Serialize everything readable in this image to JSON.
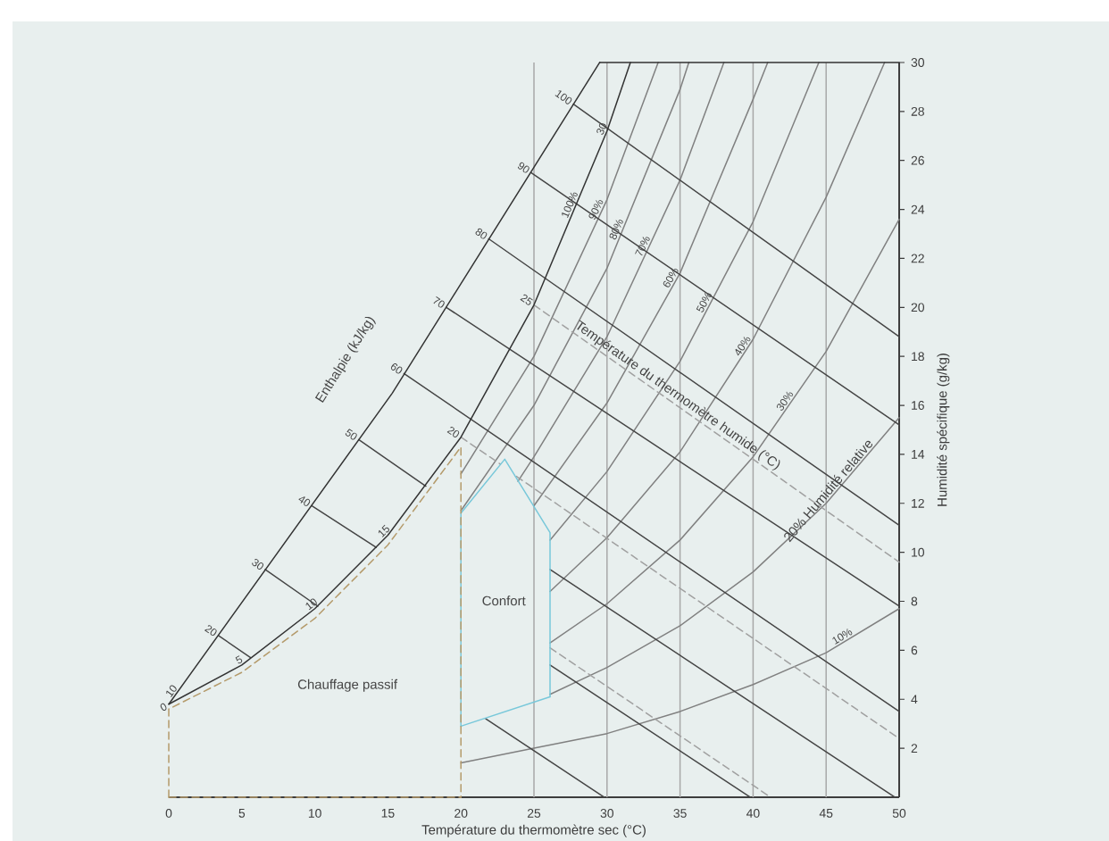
{
  "chart_data": {
    "type": "line",
    "xlabel": "Température du thermomètre sec (°C)",
    "ylabel": "Humidité spécifique (g/kg)",
    "xlim": [
      0,
      50
    ],
    "ylim": [
      0,
      30
    ],
    "xticks": [
      0,
      5,
      10,
      15,
      20,
      25,
      30,
      35,
      40,
      45,
      50
    ],
    "yticks": [
      2,
      4,
      6,
      8,
      10,
      12,
      14,
      16,
      18,
      20,
      22,
      24,
      26,
      28,
      30
    ],
    "ref_lines": [
      {
        "axis": "x",
        "value": 25,
        "color": "#a8a8a8"
      },
      {
        "axis": "x",
        "value": 30,
        "color": "#a8a8a8"
      },
      {
        "axis": "x",
        "value": 35,
        "color": "#a8a8a8"
      },
      {
        "axis": "x",
        "value": 40,
        "color": "#a8a8a8"
      },
      {
        "axis": "x",
        "value": 45,
        "color": "#a8a8a8"
      }
    ],
    "series": [
      {
        "x": [
          20,
          25,
          30,
          33.5
        ],
        "values": [
          13.2,
          18.0,
          24.4,
          30
        ],
        "color": "#808080"
      },
      {
        "x": [
          20,
          25,
          30,
          35,
          35.6
        ],
        "values": [
          11.7,
          16.0,
          21.6,
          28.9,
          30
        ],
        "color": "#808080"
      },
      {
        "x": [
          23.9,
          25,
          30,
          35,
          38
        ],
        "values": [
          12.9,
          13.9,
          18.8,
          25.2,
          30
        ],
        "color": "#808080"
      },
      {
        "x": [
          25,
          30,
          35,
          40,
          41
        ],
        "values": [
          11.9,
          16.1,
          21.4,
          28.5,
          30
        ],
        "color": "#808080"
      },
      {
        "x": [
          26.1,
          30,
          35,
          40,
          44.5
        ],
        "values": [
          10.5,
          13.3,
          17.8,
          23.5,
          30
        ],
        "color": "#808080"
      },
      {
        "x": [
          26.1,
          30,
          35,
          40,
          45,
          49
        ],
        "values": [
          8.4,
          10.6,
          14.1,
          18.7,
          24.5,
          30
        ],
        "color": "#808080"
      },
      {
        "x": [
          26.1,
          30,
          35,
          40,
          45,
          50
        ],
        "values": [
          6.3,
          7.9,
          10.5,
          13.9,
          18.2,
          23.6
        ],
        "color": "#808080"
      },
      {
        "x": [
          26.1,
          30,
          35,
          40,
          45,
          50
        ],
        "values": [
          4.2,
          5.3,
          7.0,
          9.2,
          12.0,
          15.5
        ],
        "color": "#808080"
      },
      {
        "x": [
          20,
          25,
          30,
          35,
          40,
          45,
          50
        ],
        "values": [
          1.4,
          2.0,
          2.6,
          3.5,
          4.6,
          5.9,
          7.7
        ],
        "color": "#808080"
      },
      {
        "x": [
          26.1,
          41.2
        ],
        "values": [
          6.1,
          0
        ],
        "color": "#a0a0a0",
        "line_style": "dashed"
      },
      {
        "x": [
          20,
          22.7
        ],
        "values": [
          14.7,
          13.6
        ],
        "color": "#a0a0a0",
        "line_style": "dashed"
      },
      {
        "x": [
          23.8,
          50
        ],
        "values": [
          13.1,
          2.4
        ],
        "color": "#a0a0a0",
        "line_style": "dashed"
      },
      {
        "x": [
          25,
          50
        ],
        "values": [
          20.1,
          9.6
        ],
        "color": "#a0a0a0",
        "line_style": "dashed"
      },
      {
        "x": [
          3.4,
          5.6
        ],
        "values": [
          6.6,
          5.7
        ],
        "color": "#454545"
      },
      {
        "x": [
          6.6,
          10.2
        ],
        "values": [
          9.3,
          7.8
        ],
        "color": "#454545"
      },
      {
        "x": [
          21.7,
          29.8
        ],
        "values": [
          3.2,
          0
        ],
        "color": "#454545"
      },
      {
        "x": [
          9.8,
          14.2
        ],
        "values": [
          11.9,
          10.2
        ],
        "color": "#454545"
      },
      {
        "x": [
          26.1,
          39.8
        ],
        "values": [
          5.4,
          0
        ],
        "color": "#454545"
      },
      {
        "x": [
          13.0,
          17.6
        ],
        "values": [
          14.6,
          12.7
        ],
        "color": "#454545"
      },
      {
        "x": [
          26.1,
          49.7
        ],
        "values": [
          9.3,
          0
        ],
        "color": "#454545"
      },
      {
        "x": [
          16.1,
          50
        ],
        "values": [
          17.3,
          3.5
        ],
        "color": "#454545"
      },
      {
        "x": [
          19.0,
          50
        ],
        "values": [
          20.0,
          7.8
        ],
        "color": "#454545"
      },
      {
        "x": [
          21.9,
          50
        ],
        "values": [
          22.8,
          11.1
        ],
        "color": "#454545"
      },
      {
        "x": [
          24.8,
          50
        ],
        "values": [
          25.5,
          15.2
        ],
        "color": "#454545"
      },
      {
        "x": [
          27.7,
          50
        ],
        "values": [
          28.3,
          18.8
        ],
        "color": "#454545"
      },
      {
        "x": [
          0,
          5,
          10,
          15,
          20,
          25,
          30,
          31.6
        ],
        "values": [
          3.8,
          5.4,
          7.7,
          10.7,
          14.7,
          20.1,
          27.2,
          30
        ],
        "color": "#333333"
      },
      {
        "name": "Enthalpie (kJ/kg)",
        "x": [
          0,
          15.3,
          29.5
        ],
        "values": [
          3.8,
          16.5,
          30
        ],
        "color": "#333333"
      },
      {
        "x": [
          29.5,
          50
        ],
        "values": [
          30,
          30
        ],
        "color": "#333333"
      },
      {
        "name": "Confort",
        "x": [
          20,
          20,
          23,
          26.1,
          26.1
        ],
        "values": [
          2.9,
          11.6,
          13.8,
          10.8,
          4.1
        ],
        "color": "#78c8da"
      },
      {
        "x": [
          20,
          26.1
        ],
        "values": [
          2.9,
          4.1
        ],
        "color": "#78c8da"
      },
      {
        "name": "Chauffage passif",
        "x": [
          0,
          0,
          5,
          10,
          15,
          20,
          20
        ],
        "values": [
          0,
          3.6,
          5.1,
          7.3,
          10.3,
          14.3,
          0
        ],
        "color": "#b49a6a",
        "line_style": "dashed"
      },
      {
        "x": [
          0,
          20
        ],
        "values": [
          0,
          0
        ],
        "color": "#b49a6a",
        "line_style": "dashed"
      }
    ],
    "annotations": [
      {
        "text": "10",
        "x": 0.5,
        "y": 4.2
      },
      {
        "text": "20",
        "x": 3.4,
        "y": 6.6
      },
      {
        "text": "30",
        "x": 6.6,
        "y": 9.3
      },
      {
        "text": "40",
        "x": 9.8,
        "y": 11.9
      },
      {
        "text": "50",
        "x": 13.0,
        "y": 14.6
      },
      {
        "text": "60",
        "x": 16.1,
        "y": 17.3
      },
      {
        "text": "70",
        "x": 19.0,
        "y": 20.0
      },
      {
        "text": "80",
        "x": 21.9,
        "y": 22.8
      },
      {
        "text": "90",
        "x": 24.8,
        "y": 25.5
      },
      {
        "text": "100",
        "x": 27.7,
        "y": 28.3
      },
      {
        "text": "0",
        "x": 0,
        "y": 3.8
      },
      {
        "text": "5",
        "x": 5,
        "y": 5.4
      },
      {
        "text": "10",
        "x": 10,
        "y": 7.7
      },
      {
        "text": "15",
        "x": 15,
        "y": 10.7
      },
      {
        "text": "20",
        "x": 20,
        "y": 14.7
      },
      {
        "text": "25",
        "x": 25,
        "y": 20.1
      },
      {
        "text": "30",
        "x": 30,
        "y": 27.2
      },
      {
        "text": "100%",
        "x": 27.8,
        "y": 24.1
      },
      {
        "text": "90%",
        "x": 29.6,
        "y": 23.9
      },
      {
        "text": "80%",
        "x": 31.0,
        "y": 23.1
      },
      {
        "text": "70%",
        "x": 32.8,
        "y": 22.4
      },
      {
        "text": "60%",
        "x": 34.7,
        "y": 21.1
      },
      {
        "text": "50%",
        "x": 37.0,
        "y": 20.1
      },
      {
        "text": "40%",
        "x": 39.6,
        "y": 18.3
      },
      {
        "text": "30%",
        "x": 42.5,
        "y": 16.05
      },
      {
        "text": "10%",
        "x": 46.3,
        "y": 6.37
      },
      {
        "text": "Température du thermomètre humide (°C)",
        "x": 34.5,
        "y": 16.11
      },
      {
        "text": "20% Humidité relative",
        "x": 45.5,
        "y": 12.35
      }
    ]
  }
}
